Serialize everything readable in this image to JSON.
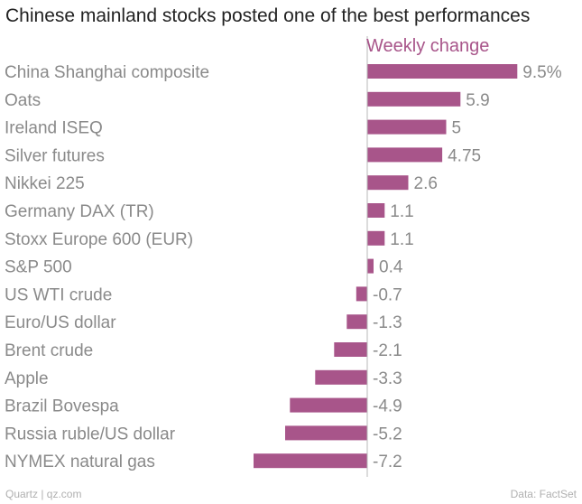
{
  "header": {
    "title": "Chinese mainland stocks posted one of the best performances"
  },
  "footer": {
    "source_left": "Quartz | qz.com",
    "source_right": "Data: FactSet"
  },
  "colors": {
    "bar": "#a8558a",
    "series_label": "#a8558a",
    "axis": "#b8b8b8"
  },
  "chart_data": {
    "type": "bar",
    "orientation": "horizontal",
    "title": "Chinese mainland stocks posted one of the best performances",
    "series": [
      {
        "name": "Weekly change",
        "values": [
          9.5,
          5.9,
          5,
          4.75,
          2.6,
          1.1,
          1.1,
          0.4,
          -0.7,
          -1.3,
          -2.1,
          -3.3,
          -4.9,
          -5.2,
          -7.2
        ]
      }
    ],
    "categories": [
      "China Shanghai composite",
      "Oats",
      "Ireland ISEQ",
      "Silver futures",
      "Nikkei 225",
      "Germany DAX (TR)",
      "Stoxx Europe 600 (EUR)",
      "S&P 500",
      "US WTI crude",
      "Euro/US dollar",
      "Brent crude",
      "Apple",
      "Brazil Bovespa",
      "Russia ruble/US dollar",
      "NYMEX natural gas"
    ],
    "value_labels": [
      "9.5%",
      "5.9",
      "5",
      "4.75",
      "2.6",
      "1.1",
      "1.1",
      "0.4",
      "-0.7",
      "-1.3",
      "-2.1",
      "-3.3",
      "-4.9",
      "-5.2",
      "-7.2"
    ],
    "xlim": [
      -7.2,
      9.5
    ],
    "xlabel": "",
    "ylabel": ""
  }
}
